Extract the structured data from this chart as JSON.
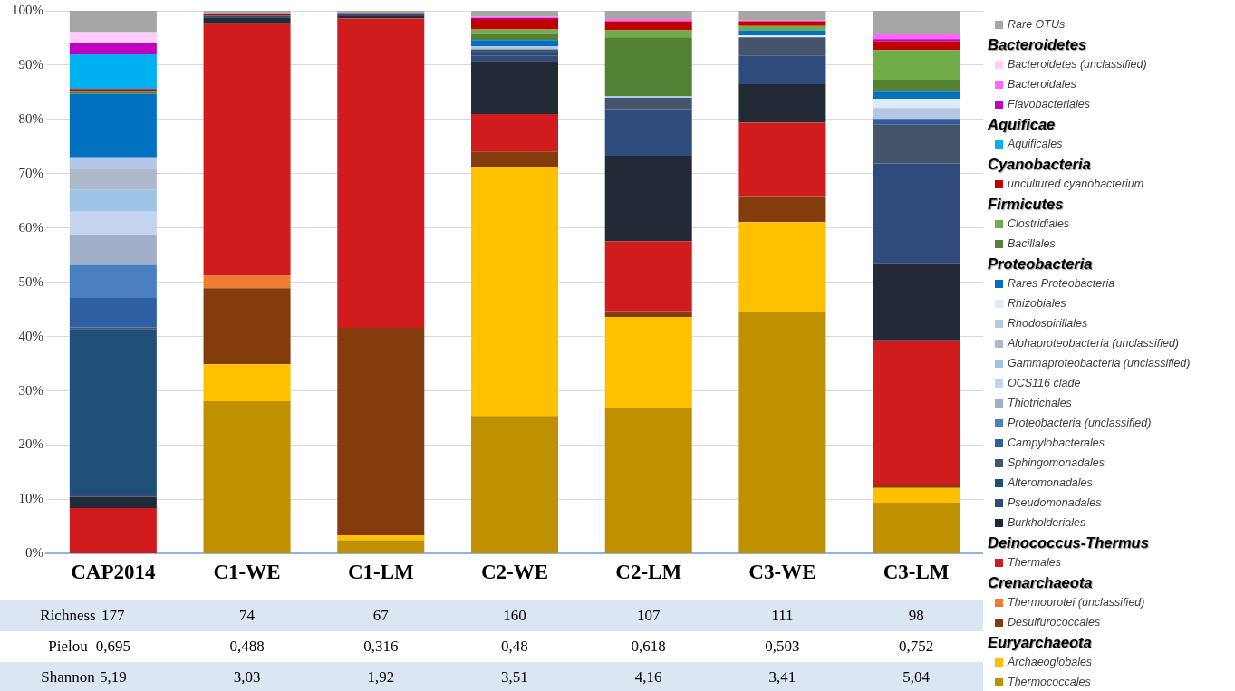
{
  "chart_data": {
    "type": "bar",
    "stacked": true,
    "categories": [
      "CAP2014",
      "C1-WE",
      "C1-LM",
      "C2-WE",
      "C2-LM",
      "C3-WE",
      "C3-LM"
    ],
    "ylim": [
      0,
      100
    ],
    "yticks": [
      {
        "value": 0,
        "label": "0%"
      },
      {
        "value": 10,
        "label": "10%"
      },
      {
        "value": 20,
        "label": "20%"
      },
      {
        "value": 30,
        "label": "30%"
      },
      {
        "value": 40,
        "label": "40%"
      },
      {
        "value": 50,
        "label": "50%"
      },
      {
        "value": 60,
        "label": "60%"
      },
      {
        "value": 70,
        "label": "70%"
      },
      {
        "value": 80,
        "label": "80%"
      },
      {
        "value": 90,
        "label": "90%"
      },
      {
        "value": 100,
        "label": "100%"
      }
    ],
    "grid": "y",
    "legend": "right",
    "series": [
      {
        "name": "Thermococcales",
        "color": "#bf9000",
        "values": [
          0,
          28.1,
          2.5,
          25.4,
          26.9,
          44.5,
          9.4
        ]
      },
      {
        "name": "Archaeoglobales",
        "color": "#ffc000",
        "values": [
          0,
          6.8,
          0.9,
          45.9,
          16.7,
          16.6,
          2.7
        ]
      },
      {
        "name": "Desulfurococcales",
        "color": "#843c0c",
        "values": [
          0,
          14.0,
          38.2,
          2.8,
          1.1,
          4.8,
          0.5
        ]
      },
      {
        "name": "Thermoprotei (unclassified)",
        "color": "#ed7d31",
        "values": [
          0,
          2.3,
          0,
          0,
          0,
          0,
          0
        ]
      },
      {
        "name": "Thermales",
        "color": "#d01c1c",
        "values": [
          8.4,
          46.5,
          57.0,
          6.9,
          12.9,
          13.5,
          26.7
        ]
      },
      {
        "name": "Burkholderiales",
        "color": "#222a35",
        "values": [
          2.1,
          1.1,
          0.4,
          9.8,
          15.7,
          7.1,
          14.2
        ]
      },
      {
        "name": "Pseudomonadales",
        "color": "#2f4b7c",
        "values": [
          0.4,
          0.3,
          0.4,
          1.0,
          8.6,
          5.3,
          18.4
        ]
      },
      {
        "name": "Alteromonadales",
        "color": "#1f4e79",
        "values": [
          30.5,
          0,
          0,
          0.5,
          0,
          0,
          0
        ]
      },
      {
        "name": "Sphingomonadales",
        "color": "#44546a",
        "values": [
          0.3,
          0,
          0,
          0.6,
          2.1,
          3.3,
          7.2
        ]
      },
      {
        "name": "Campylobacterales",
        "color": "#2e5fa0",
        "values": [
          5.4,
          0,
          0,
          0,
          0,
          0,
          1.0
        ]
      },
      {
        "name": "Proteobacteria (unclassified)",
        "color": "#4a7fc0",
        "values": [
          6.1,
          0,
          0,
          0,
          0,
          0,
          0
        ]
      },
      {
        "name": "Thiotrichales",
        "color": "#a0aec8",
        "values": [
          5.6,
          0,
          0,
          0,
          0,
          0,
          0
        ]
      },
      {
        "name": "OCS116 clade",
        "color": "#c5d4ee",
        "values": [
          4.2,
          0,
          0,
          0,
          0,
          0,
          0
        ]
      },
      {
        "name": "Gammaproteobacteria (unclassified)",
        "color": "#9dc3e6",
        "values": [
          4.0,
          0,
          0,
          0,
          0,
          0,
          0
        ]
      },
      {
        "name": "Alphaproteobacteria (unclassified)",
        "color": "#adb9ca",
        "values": [
          3.8,
          0,
          0,
          0,
          0,
          0,
          0
        ]
      },
      {
        "name": "Rhodospirillales",
        "color": "#b4c7e7",
        "values": [
          2.2,
          0,
          0,
          0.6,
          0.3,
          0,
          2.0
        ]
      },
      {
        "name": "Rhizobiales",
        "color": "#deebf7",
        "values": [
          0,
          0,
          0,
          0,
          0,
          0.4,
          1.7
        ]
      },
      {
        "name": "Rares Proteobacteria",
        "color": "#0070c0",
        "values": [
          11.7,
          0,
          0,
          1.1,
          0,
          0.9,
          1.3
        ]
      },
      {
        "name": "Bacillales",
        "color": "#548235",
        "values": [
          0.4,
          0,
          0,
          1.3,
          10.8,
          0,
          2.2
        ]
      },
      {
        "name": "Clostridiales",
        "color": "#70ad47",
        "values": [
          0,
          0,
          0,
          0.7,
          1.3,
          0.8,
          5.5
        ]
      },
      {
        "name": "uncultured cyanobacterium",
        "color": "#c00000",
        "values": [
          0.5,
          0.3,
          0.2,
          1.9,
          1.7,
          0.9,
          1.6
        ]
      },
      {
        "name": "Aquificales",
        "color": "#00b0f0",
        "values": [
          6.4,
          0,
          0,
          0,
          0,
          0,
          0
        ]
      },
      {
        "name": "Flavobacteriales",
        "color": "#c000c0",
        "values": [
          2.1,
          0,
          0,
          0.2,
          0,
          0,
          0.4
        ]
      },
      {
        "name": "Bacteroidales",
        "color": "#ff66ff",
        "values": [
          0,
          0,
          0,
          0.2,
          0.4,
          0.2,
          0.9
        ]
      },
      {
        "name": "Bacteroidetes (unclassified)",
        "color": "#ffccff",
        "values": [
          2.0,
          0,
          0,
          0,
          0,
          0,
          0
        ]
      },
      {
        "name": "Rare OTUs",
        "color": "#a6a6a6",
        "values": [
          3.9,
          0.6,
          0.4,
          1.1,
          1.5,
          1.7,
          4.3
        ]
      }
    ],
    "annotations": [
      "Richness",
      "177",
      "74",
      "67",
      "160",
      "107",
      "111",
      "98",
      "Pielou",
      "0,695",
      "0,488",
      "0,316",
      "0,48",
      "0,618",
      "0,503",
      "0,752",
      "Shannon",
      "5,19",
      "3,03",
      "1,92",
      "3,51",
      "4,16",
      "3,41",
      "5,04",
      "Bacteroidetes",
      "Aquificae",
      "Cyanobacteria",
      "Firmicutes",
      "Proteobacteria",
      "Deinococcus-Thermus",
      "Crenarchaeota",
      "Euryarchaeota"
    ]
  }
}
